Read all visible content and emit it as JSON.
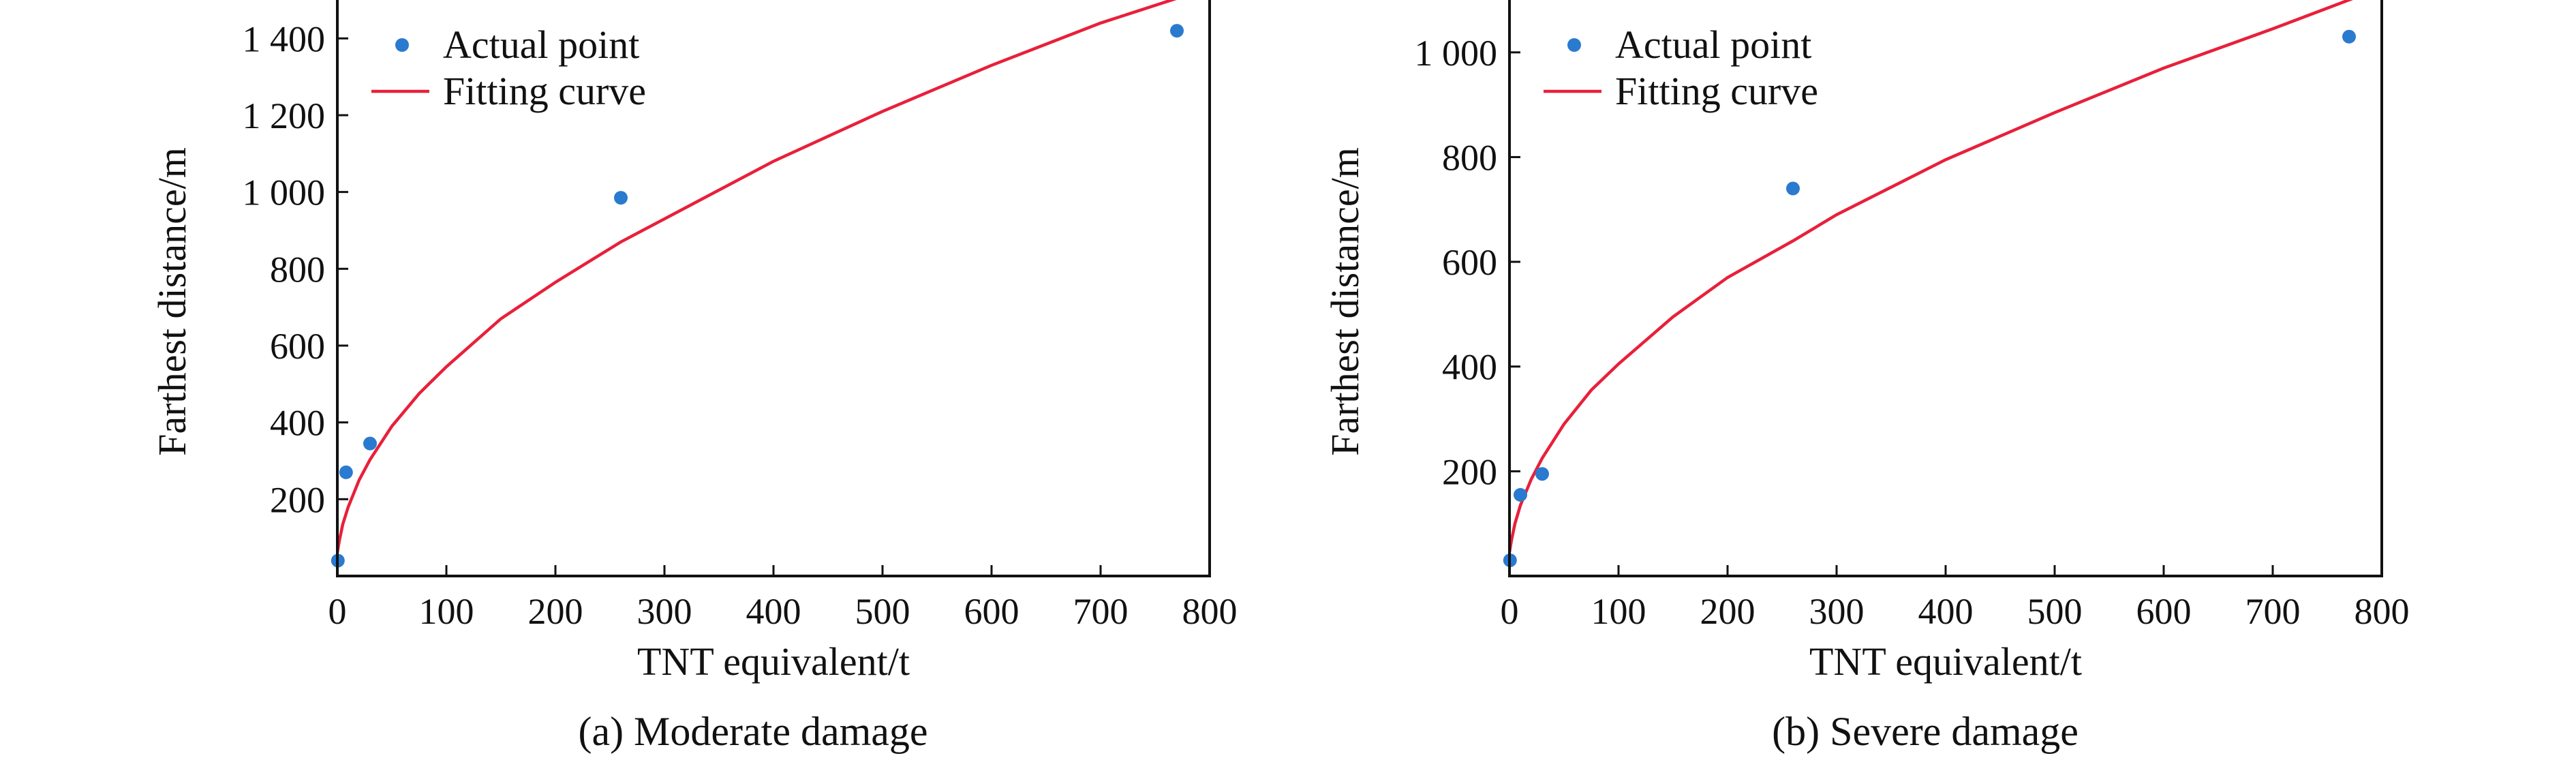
{
  "colors": {
    "points": "#2a7ad0",
    "curve": "#e8203a",
    "axes": "#111111"
  },
  "chart_data": [
    {
      "type": "scatter",
      "caption": "(a) Moderate damage",
      "xlabel": "TNT equivalent/t",
      "ylabel": "Farthest distance/m",
      "xlim": [
        0,
        800
      ],
      "ylim": [
        0,
        1500
      ],
      "xticks": [
        0,
        100,
        200,
        300,
        400,
        500,
        600,
        700,
        800
      ],
      "xtick_labels": [
        "0",
        "100",
        "200",
        "300",
        "400",
        "500",
        "600",
        "700",
        "800"
      ],
      "yticks": [
        200,
        400,
        600,
        800,
        1000,
        1200,
        1400
      ],
      "ytick_labels": [
        "200",
        "400",
        "600",
        "800",
        "1 000",
        "1 200",
        "1 400"
      ],
      "legend": {
        "position": "top-left",
        "entries": [
          "Actual point",
          "Fitting curve"
        ]
      },
      "series": [
        {
          "name": "Actual point",
          "type": "scatter",
          "x": [
            0.5,
            8,
            30,
            260,
            770
          ],
          "y": [
            40,
            270,
            345,
            985,
            1420
          ]
        },
        {
          "name": "Fitting curve",
          "type": "line",
          "x": [
            0,
            1,
            2,
            5,
            10,
            20,
            30,
            50,
            75,
            100,
            150,
            200,
            260,
            300,
            400,
            500,
            600,
            700,
            776
          ],
          "y": [
            60,
            78,
            94,
            135,
            180,
            250,
            303,
            390,
            475,
            545,
            670,
            765,
            870,
            930,
            1080,
            1210,
            1330,
            1440,
            1510
          ]
        }
      ]
    },
    {
      "type": "scatter",
      "caption": "(b) Severe damage",
      "xlabel": "TNT equivalent/t",
      "ylabel": "Farthest distance/m",
      "xlim": [
        0,
        800
      ],
      "ylim": [
        0,
        1100
      ],
      "xticks": [
        0,
        100,
        200,
        300,
        400,
        500,
        600,
        700,
        800
      ],
      "xtick_labels": [
        "0",
        "100",
        "200",
        "300",
        "400",
        "500",
        "600",
        "700",
        "800"
      ],
      "yticks": [
        200,
        400,
        600,
        800,
        1000
      ],
      "ytick_labels": [
        "200",
        "400",
        "600",
        "800",
        "1 000"
      ],
      "legend": {
        "position": "top-left",
        "entries": [
          "Actual point",
          "Fitting curve"
        ]
      },
      "series": [
        {
          "name": "Actual point",
          "type": "scatter",
          "x": [
            0.5,
            10,
            30,
            260,
            770
          ],
          "y": [
            30,
            155,
            195,
            740,
            1030
          ]
        },
        {
          "name": "Fitting curve",
          "type": "line",
          "x": [
            0,
            1,
            2,
            5,
            10,
            20,
            30,
            50,
            75,
            100,
            150,
            200,
            260,
            300,
            400,
            500,
            600,
            700,
            776
          ],
          "y": [
            45,
            58,
            70,
            100,
            135,
            185,
            225,
            290,
            355,
            405,
            495,
            570,
            640,
            690,
            795,
            885,
            970,
            1045,
            1105
          ]
        }
      ]
    }
  ]
}
